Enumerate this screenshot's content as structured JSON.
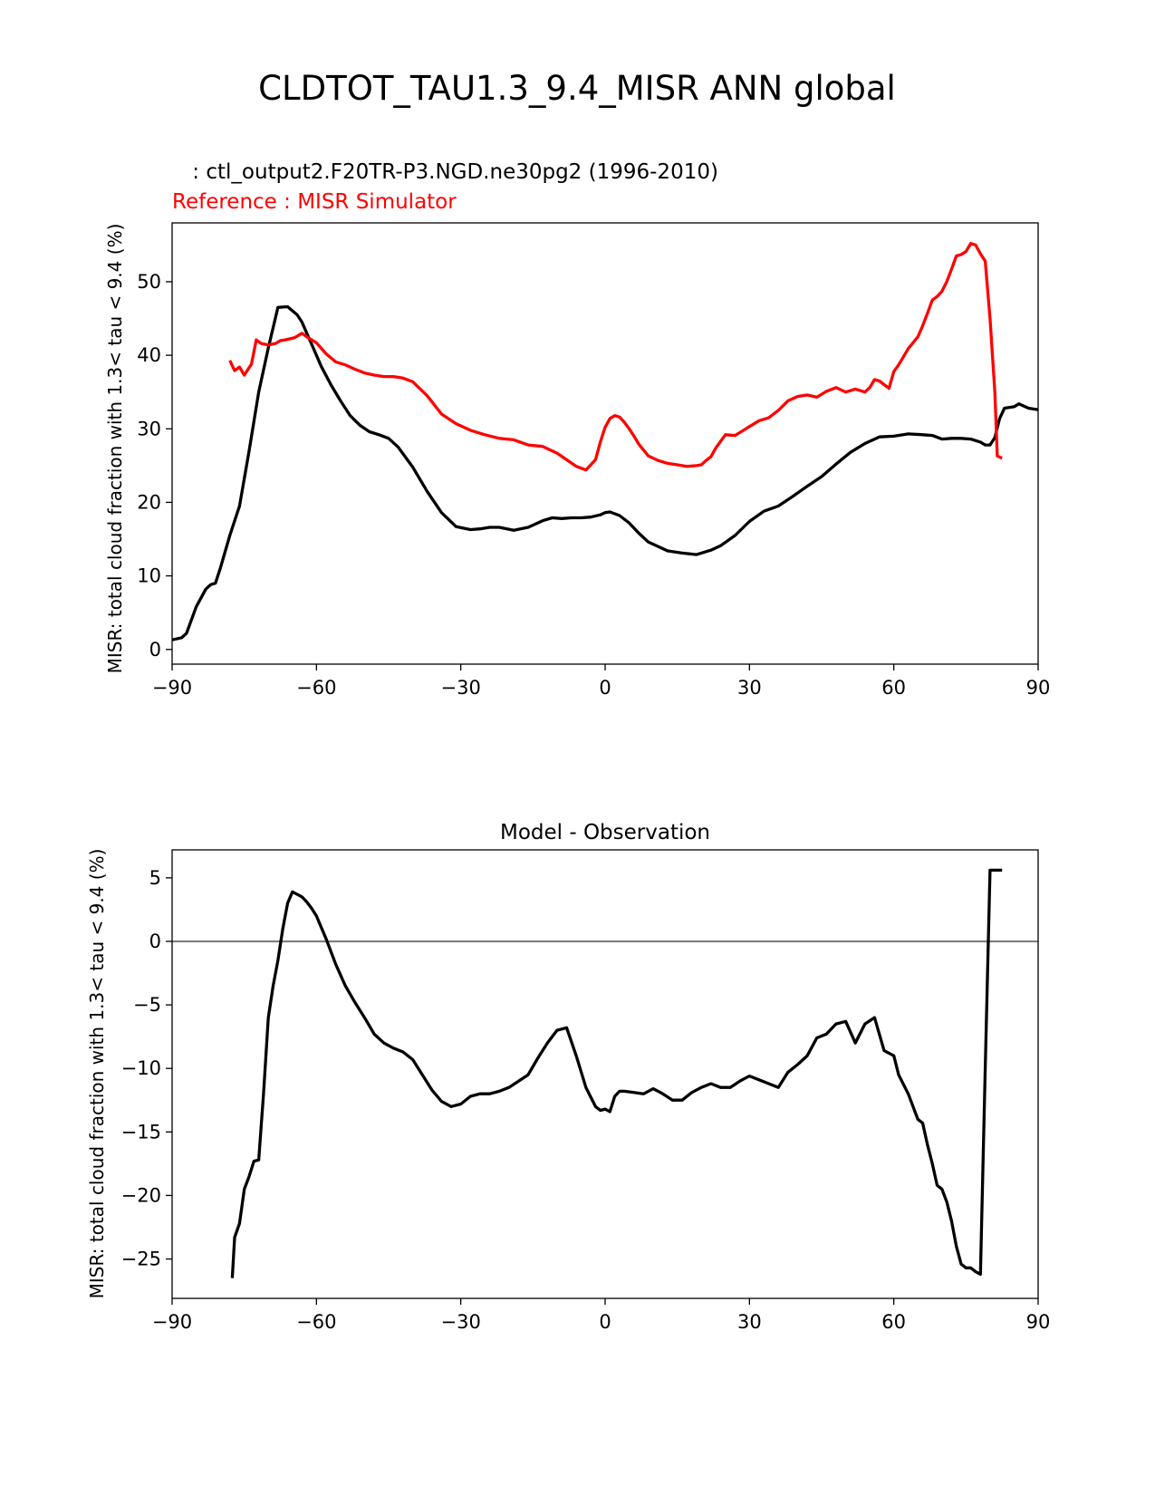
{
  "figure_title": "CLDTOT_TAU1.3_9.4_MISR ANN global",
  "colors": {
    "test": "#000000",
    "reference": "#ff0000",
    "zero_line": "#808080"
  },
  "chart_data": [
    {
      "type": "line",
      "test_label": " : ctl_output2.F20TR-P3.NGD.ne30pg2 (1996-2010)",
      "reference_label": "Reference : MISR Simulator",
      "xlabel": "",
      "ylabel": "MISR: total cloud fraction with 1.3< tau < 9.4 (%)",
      "xlim": [
        -90,
        90
      ],
      "ylim": [
        -2,
        58
      ],
      "xticks": [
        -90,
        -60,
        -30,
        0,
        30,
        60,
        90
      ],
      "xtick_labels": [
        "−90",
        "−60",
        "−30",
        "0",
        "30",
        "60",
        "90"
      ],
      "yticks": [
        0,
        10,
        20,
        30,
        40,
        50
      ],
      "ytick_labels": [
        "0",
        "10",
        "20",
        "30",
        "40",
        "50"
      ],
      "series": [
        {
          "name": "test",
          "x": [
            -90,
            -88,
            -87,
            -85,
            -83,
            -82,
            -81,
            -80,
            -78,
            -76,
            -74,
            -72,
            -70,
            -68,
            -66,
            -64,
            -63,
            -62,
            -61,
            -59,
            -57,
            -55,
            -53,
            -51,
            -49,
            -47,
            -45,
            -43,
            -40,
            -37,
            -34,
            -31,
            -28,
            -26,
            -24,
            -22,
            -19,
            -16,
            -13,
            -11,
            -9,
            -7,
            -5,
            -3,
            -1,
            0,
            1,
            3,
            5,
            7,
            9,
            11,
            13,
            16,
            19,
            22,
            24,
            27,
            30,
            33,
            36,
            39,
            42,
            45,
            48,
            51,
            54,
            57,
            60,
            63,
            66,
            68,
            70,
            72,
            74,
            76,
            78,
            79,
            80,
            81,
            82,
            83,
            85,
            86,
            88,
            90
          ],
          "values": [
            1.3,
            1.6,
            2.2,
            5.8,
            8.2,
            8.8,
            9.0,
            11,
            15.5,
            19.5,
            27,
            35,
            41,
            46.5,
            46.6,
            45.5,
            44.5,
            43,
            41.5,
            38.5,
            36,
            33.8,
            31.8,
            30.5,
            29.6,
            29.2,
            28.7,
            27.5,
            24.8,
            21.5,
            18.6,
            16.7,
            16.3,
            16.4,
            16.6,
            16.6,
            16.2,
            16.6,
            17.5,
            17.9,
            17.8,
            17.9,
            17.9,
            18.0,
            18.3,
            18.6,
            18.7,
            18.2,
            17.2,
            15.8,
            14.6,
            14.0,
            13.4,
            13.1,
            12.9,
            13.5,
            14.1,
            15.5,
            17.4,
            18.8,
            19.5,
            20.8,
            22.2,
            23.5,
            25.2,
            26.8,
            28.0,
            28.9,
            29.0,
            29.3,
            29.2,
            29.1,
            28.6,
            28.7,
            28.7,
            28.6,
            28.2,
            27.8,
            27.8,
            28.8,
            31.4,
            32.8,
            33.0,
            33.4,
            32.8,
            32.6
          ]
        },
        {
          "name": "reference",
          "x": [
            -78,
            -77,
            -76,
            -75,
            -73.5,
            -72.5,
            -71.5,
            -70,
            -68.5,
            -67.5,
            -66.5,
            -64.5,
            -63,
            -62,
            -60,
            -58,
            -56,
            -54,
            -52,
            -50,
            -48,
            -46,
            -44,
            -42,
            -40,
            -37,
            -34,
            -31,
            -28,
            -25,
            -22,
            -19,
            -16,
            -13,
            -10,
            -8,
            -6,
            -4,
            -2,
            -1,
            0,
            1,
            2,
            3,
            4,
            5,
            6,
            7,
            9,
            11,
            13,
            15,
            17,
            19,
            20,
            21,
            22,
            23,
            25,
            27,
            29,
            30,
            32,
            34,
            35,
            36,
            38,
            40,
            42,
            44,
            46,
            48,
            50,
            52,
            54,
            55,
            56,
            57,
            59,
            60,
            61,
            63,
            65,
            66,
            67,
            68,
            69,
            70,
            71,
            72,
            73,
            74,
            75,
            76,
            77,
            78,
            79,
            80,
            81,
            81.5,
            82.5
          ],
          "values": [
            39.3,
            37.9,
            38.4,
            37.3,
            38.8,
            42.1,
            41.6,
            41.4,
            41.6,
            42.0,
            42.1,
            42.4,
            43.0,
            42.5,
            41.7,
            40.2,
            39.1,
            38.7,
            38.1,
            37.6,
            37.3,
            37.1,
            37.1,
            36.9,
            36.4,
            34.5,
            32.0,
            30.7,
            29.8,
            29.2,
            28.7,
            28.5,
            27.8,
            27.6,
            26.7,
            25.8,
            24.9,
            24.4,
            25.8,
            28.2,
            30.2,
            31.4,
            31.8,
            31.6,
            30.9,
            30.0,
            29.0,
            27.9,
            26.3,
            25.7,
            25.3,
            25.1,
            24.9,
            25.0,
            25.1,
            25.7,
            26.2,
            27.4,
            29.2,
            29.1,
            29.9,
            30.3,
            31.1,
            31.5,
            32.0,
            32.5,
            33.8,
            34.4,
            34.6,
            34.3,
            35.1,
            35.6,
            35.0,
            35.4,
            35.0,
            35.6,
            36.7,
            36.5,
            35.5,
            37.8,
            38.7,
            40.9,
            42.5,
            44.0,
            45.7,
            47.5,
            48.0,
            48.7,
            50.0,
            51.7,
            53.5,
            53.7,
            54.1,
            55.2,
            55.0,
            53.8,
            52.8,
            45.0,
            35.0,
            26.3,
            26.0
          ]
        }
      ]
    },
    {
      "type": "line",
      "title": "Model - Observation",
      "xlabel": "",
      "ylabel": "MISR: total cloud fraction with 1.3< tau < 9.4 (%)",
      "xlim": [
        -90,
        90
      ],
      "ylim": [
        -28.1,
        7.2
      ],
      "xticks": [
        -90,
        -60,
        -30,
        0,
        30,
        60,
        90
      ],
      "xtick_labels": [
        "−90",
        "−60",
        "−30",
        "0",
        "30",
        "60",
        "90"
      ],
      "yticks": [
        -25,
        -20,
        -15,
        -10,
        -5,
        0,
        5
      ],
      "ytick_labels": [
        "−25",
        "−20",
        "−15",
        "−10",
        "−5",
        "0",
        "5"
      ],
      "zero_line": 0,
      "series": [
        {
          "name": "difference",
          "x": [
            -77.5,
            -77,
            -76,
            -75,
            -74,
            -73,
            -72,
            -71,
            -70,
            -69,
            -68,
            -67,
            -66,
            -65,
            -64,
            -63,
            -62,
            -61,
            -60,
            -58,
            -56,
            -54,
            -52,
            -50,
            -48,
            -46,
            -44,
            -42,
            -40,
            -38,
            -36,
            -34,
            -32,
            -30,
            -28,
            -26,
            -24,
            -22,
            -20,
            -18,
            -16,
            -14,
            -12,
            -10,
            -8,
            -6,
            -4,
            -2,
            -1,
            0,
            1,
            2,
            3,
            4,
            6,
            8,
            10,
            12,
            14,
            16,
            18,
            20,
            22,
            24,
            26,
            28,
            30,
            32,
            34,
            36,
            38,
            40,
            42,
            44,
            46,
            48,
            50,
            52,
            54,
            56,
            58,
            60,
            61,
            63,
            65,
            66,
            67,
            68,
            69,
            70,
            71,
            72,
            73,
            74,
            75,
            76,
            77,
            78,
            79,
            80,
            81,
            82.5
          ],
          "values": [
            -26.5,
            -23.3,
            -22.2,
            -19.5,
            -18.5,
            -17.3,
            -17.2,
            -12.0,
            -6.0,
            -3.5,
            -1.5,
            1.0,
            3.0,
            3.9,
            3.7,
            3.5,
            3.1,
            2.6,
            2.0,
            0.2,
            -1.8,
            -3.5,
            -4.8,
            -6.0,
            -7.3,
            -8.0,
            -8.4,
            -8.7,
            -9.3,
            -10.5,
            -11.7,
            -12.6,
            -13.0,
            -12.8,
            -12.2,
            -12.0,
            -12.0,
            -11.8,
            -11.5,
            -11.0,
            -10.5,
            -9.2,
            -8.0,
            -7.0,
            -6.8,
            -9.0,
            -11.5,
            -13.0,
            -13.3,
            -13.2,
            -13.4,
            -12.2,
            -11.8,
            -11.8,
            -11.9,
            -12.0,
            -11.6,
            -12.0,
            -12.5,
            -12.5,
            -11.9,
            -11.5,
            -11.2,
            -11.5,
            -11.5,
            -11.0,
            -10.6,
            -10.9,
            -11.2,
            -11.5,
            -10.3,
            -9.7,
            -9.0,
            -7.6,
            -7.3,
            -6.5,
            -6.3,
            -8.0,
            -6.5,
            -6.0,
            -8.6,
            -9.0,
            -10.5,
            -12.0,
            -14.0,
            -14.3,
            -16.0,
            -17.5,
            -19.2,
            -19.5,
            -20.5,
            -22.0,
            -24.0,
            -25.4,
            -25.7,
            -25.7,
            -26.0,
            -26.2,
            -10.0,
            5.6,
            5.6,
            5.6
          ]
        }
      ]
    }
  ]
}
